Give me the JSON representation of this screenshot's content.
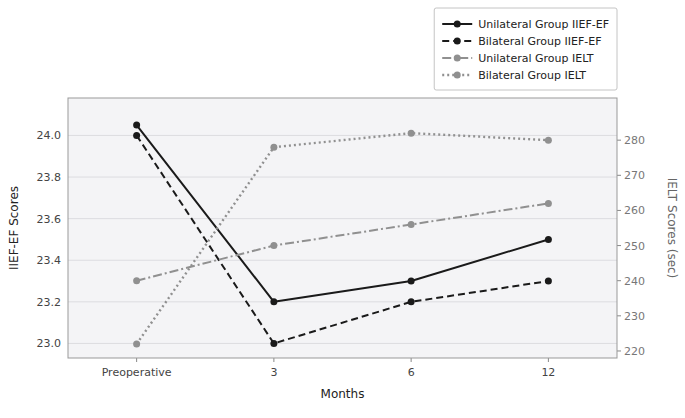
{
  "chart_data": {
    "type": "line",
    "categories": [
      "Preoperative",
      "3",
      "6",
      "12"
    ],
    "xlabel": "Months",
    "ylabel": "IIEF-EF Scores",
    "y2label": "IELT Scores (sec)",
    "series": [
      {
        "name": "Unilateral Group IIEF-EF",
        "color": "#1a1a1a",
        "line_style": "solid",
        "marker": "circle",
        "values": [
          24.05,
          23.2,
          23.3,
          23.5
        ]
      },
      {
        "name": "Bilateral Group IIEF-EF",
        "color": "#1a1a1a",
        "line_style": "dashed",
        "marker": "circle",
        "values": [
          24.0,
          23.0,
          23.2,
          23.3
        ]
      },
      {
        "name": "Unilateral Group IELT",
        "color": "#909090",
        "line_style": "dashdot",
        "marker": "circle",
        "axis": "y2",
        "values": [
          240,
          250,
          256,
          262
        ]
      },
      {
        "name": "Bilateral Group IELT",
        "color": "#909090",
        "line_style": "dotted",
        "marker": "circle",
        "axis": "y2",
        "values": [
          222,
          278,
          282,
          280
        ]
      }
    ],
    "ylim": [
      22.93,
      24.18
    ],
    "yticks": [
      {
        "value": 23.0,
        "label": "23.0"
      },
      23.2,
      23.4,
      23.6,
      23.8,
      {
        "value": 24.0,
        "label": "24.0"
      }
    ],
    "y2lim": [
      218,
      292
    ],
    "y2ticks": [
      220,
      230,
      240,
      250,
      260,
      270,
      280
    ],
    "grid": true,
    "legend": "top-right"
  }
}
